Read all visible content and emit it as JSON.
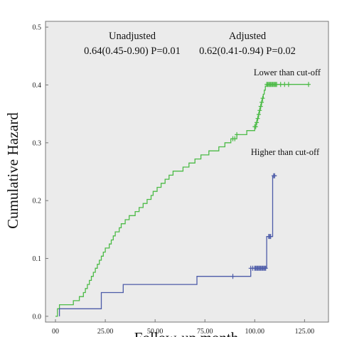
{
  "chart_data": {
    "type": "line",
    "ylabel": "Cumulative Hazard",
    "xlabel": "Follow-up month",
    "xlim": [
      -5,
      137
    ],
    "ylim": [
      -0.01,
      0.51
    ],
    "x_ticks": [
      "00",
      "25.00",
      "50.00",
      "75.00",
      "100.00",
      "125.00"
    ],
    "x_tick_values": [
      0,
      25,
      50,
      75,
      100,
      125
    ],
    "y_ticks": [
      "0.0",
      "0.1",
      "0.2",
      "0.3",
      "0.4",
      "0.5"
    ],
    "y_tick_values": [
      0,
      0.1,
      0.2,
      0.3,
      0.4,
      0.5
    ],
    "plot_background": "#ebebeb",
    "annotations": {
      "unadjusted_title": "Unadjusted",
      "unadjusted_value": "0.64(0.45-0.90) P=0.01",
      "adjusted_title": "Adjusted",
      "adjusted_value": "0.62(0.41-0.94) P=0.02"
    },
    "series": [
      {
        "name": "Lower than cut-off",
        "color": "#4cbb47",
        "points": [
          [
            0,
            0
          ],
          [
            1,
            0
          ],
          [
            1,
            0.013
          ],
          [
            2,
            0.013
          ],
          [
            2,
            0.02
          ],
          [
            9,
            0.02
          ],
          [
            9,
            0.027
          ],
          [
            12,
            0.027
          ],
          [
            12,
            0.034
          ],
          [
            14,
            0.034
          ],
          [
            14,
            0.041
          ],
          [
            15,
            0.041
          ],
          [
            15,
            0.048
          ],
          [
            16,
            0.048
          ],
          [
            16,
            0.055
          ],
          [
            17,
            0.055
          ],
          [
            17,
            0.062
          ],
          [
            18,
            0.062
          ],
          [
            18,
            0.069
          ],
          [
            19,
            0.069
          ],
          [
            19,
            0.076
          ],
          [
            20,
            0.076
          ],
          [
            20,
            0.083
          ],
          [
            21,
            0.083
          ],
          [
            21,
            0.09
          ],
          [
            22,
            0.09
          ],
          [
            22,
            0.097
          ],
          [
            23,
            0.097
          ],
          [
            23,
            0.104
          ],
          [
            24,
            0.104
          ],
          [
            24,
            0.111
          ],
          [
            25,
            0.111
          ],
          [
            25,
            0.118
          ],
          [
            27,
            0.118
          ],
          [
            27,
            0.125
          ],
          [
            28,
            0.125
          ],
          [
            28,
            0.132
          ],
          [
            29,
            0.132
          ],
          [
            29,
            0.139
          ],
          [
            30,
            0.139
          ],
          [
            30,
            0.146
          ],
          [
            32,
            0.146
          ],
          [
            32,
            0.153
          ],
          [
            33,
            0.153
          ],
          [
            33,
            0.16
          ],
          [
            35,
            0.16
          ],
          [
            35,
            0.167
          ],
          [
            37,
            0.167
          ],
          [
            37,
            0.174
          ],
          [
            40,
            0.174
          ],
          [
            40,
            0.181
          ],
          [
            42,
            0.181
          ],
          [
            42,
            0.188
          ],
          [
            44,
            0.188
          ],
          [
            44,
            0.195
          ],
          [
            46,
            0.195
          ],
          [
            46,
            0.202
          ],
          [
            48,
            0.202
          ],
          [
            48,
            0.209
          ],
          [
            49,
            0.209
          ],
          [
            49,
            0.216
          ],
          [
            51,
            0.216
          ],
          [
            51,
            0.223
          ],
          [
            53,
            0.223
          ],
          [
            53,
            0.23
          ],
          [
            55,
            0.23
          ],
          [
            55,
            0.237
          ],
          [
            57,
            0.237
          ],
          [
            57,
            0.244
          ],
          [
            59,
            0.244
          ],
          [
            59,
            0.251
          ],
          [
            64,
            0.251
          ],
          [
            64,
            0.258
          ],
          [
            67,
            0.258
          ],
          [
            67,
            0.265
          ],
          [
            70,
            0.265
          ],
          [
            70,
            0.272
          ],
          [
            73,
            0.272
          ],
          [
            73,
            0.279
          ],
          [
            77,
            0.279
          ],
          [
            77,
            0.286
          ],
          [
            82,
            0.286
          ],
          [
            82,
            0.293
          ],
          [
            85,
            0.293
          ],
          [
            85,
            0.3
          ],
          [
            88,
            0.3
          ],
          [
            88,
            0.307
          ],
          [
            91,
            0.307
          ],
          [
            91,
            0.314
          ],
          [
            96,
            0.314
          ],
          [
            96,
            0.321
          ],
          [
            100,
            0.321
          ],
          [
            100,
            0.328
          ],
          [
            100.6,
            0.328
          ],
          [
            100.6,
            0.335
          ],
          [
            101.2,
            0.335
          ],
          [
            101.2,
            0.342
          ],
          [
            101.8,
            0.342
          ],
          [
            101.8,
            0.349
          ],
          [
            102.3,
            0.349
          ],
          [
            102.3,
            0.356
          ],
          [
            102.8,
            0.356
          ],
          [
            102.8,
            0.363
          ],
          [
            103.3,
            0.363
          ],
          [
            103.3,
            0.37
          ],
          [
            103.8,
            0.37
          ],
          [
            103.8,
            0.377
          ],
          [
            104.3,
            0.377
          ],
          [
            104.3,
            0.384
          ],
          [
            104.8,
            0.384
          ],
          [
            104.8,
            0.391
          ],
          [
            105.3,
            0.391
          ],
          [
            105.3,
            0.398
          ],
          [
            106,
            0.398
          ],
          [
            106,
            0.401
          ],
          [
            127,
            0.401
          ]
        ],
        "censor_x": [
          89,
          90,
          91,
          100,
          100.5,
          101,
          101.5,
          102,
          102.5,
          103,
          103.5,
          104,
          106,
          106.5,
          107,
          107.5,
          108,
          108.5,
          109,
          109.5,
          110,
          110.5,
          111,
          113,
          115,
          117,
          127
        ]
      },
      {
        "name": "Higher than cut-off",
        "color": "#4c5ba8",
        "points": [
          [
            2,
            0
          ],
          [
            2,
            0.013
          ],
          [
            23,
            0.013
          ],
          [
            23,
            0.041
          ],
          [
            34,
            0.041
          ],
          [
            34,
            0.055
          ],
          [
            71,
            0.055
          ],
          [
            71,
            0.069
          ],
          [
            98,
            0.069
          ],
          [
            98,
            0.083
          ],
          [
            106,
            0.083
          ],
          [
            106,
            0.138
          ],
          [
            109,
            0.138
          ],
          [
            109,
            0.243
          ],
          [
            111,
            0.243
          ]
        ],
        "censor_x": [
          89,
          98,
          99,
          100,
          100.5,
          101,
          101.5,
          102,
          102.5,
          103,
          103.5,
          104,
          104.5,
          105,
          105.5,
          107,
          107.5,
          108,
          109.5,
          110
        ]
      }
    ]
  }
}
